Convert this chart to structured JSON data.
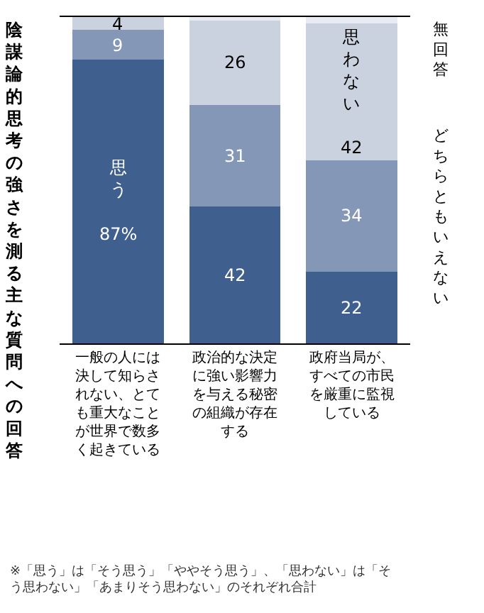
{
  "chart_data": {
    "type": "bar",
    "stacked": true,
    "title": "陰謀論的思考の強さを測る主な質問への回答",
    "annotations": [
      "※「思う」は「そう思う」「ややそう思う」、「思わない」は「そう思わない」「あまりそう思わない」のそれぞれ合計"
    ],
    "categories": [
      "一般の人には決して知らされない、とても重大なことが世界で数多く起きている",
      "政治的な決定に強い影響力を与える秘密の組織が存在する",
      "政府当局が、すべての市民を厳重に監視している"
    ],
    "ylim": [
      0,
      100
    ],
    "tick_labels": "x",
    "legend": false,
    "series": [
      {
        "name": "思う",
        "color": "#3f5f8f",
        "values": [
          87,
          42,
          22
        ],
        "value_labels": [
          "87%",
          "42",
          "22"
        ]
      },
      {
        "name": "どちらともいえない",
        "color": "#8497b7",
        "values": [
          9,
          31,
          34
        ],
        "value_labels": [
          "9",
          "31",
          "34"
        ]
      },
      {
        "name": "思わない",
        "color": "#cbd2df",
        "values": [
          4,
          26,
          42
        ],
        "value_labels": [
          "4",
          "26",
          "42"
        ]
      },
      {
        "name": "無回答",
        "color": "#e8ebf1",
        "values": [
          0,
          1,
          2
        ]
      }
    ]
  }
}
